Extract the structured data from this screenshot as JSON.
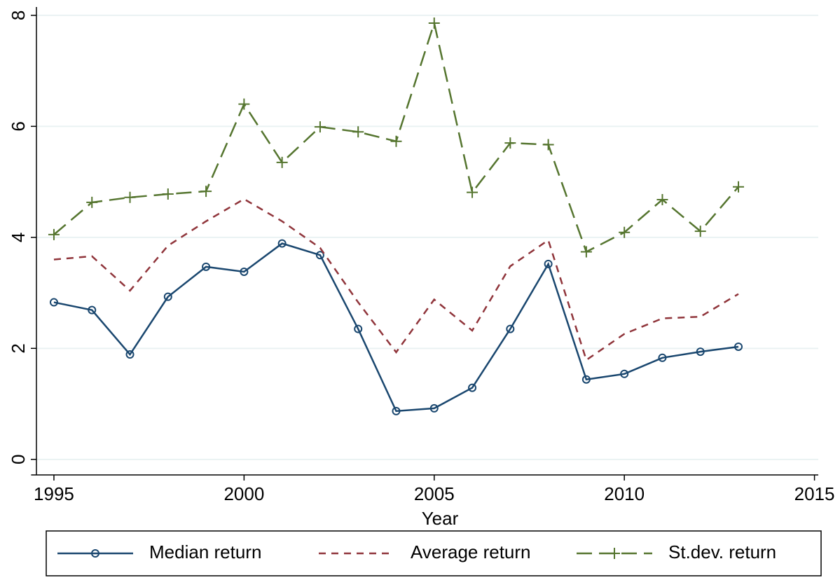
{
  "chart_data": {
    "type": "line",
    "x_label": "Year",
    "x": [
      1995,
      1996,
      1997,
      1998,
      1999,
      2000,
      2001,
      2002,
      2003,
      2004,
      2005,
      2006,
      2007,
      2008,
      2009,
      2010,
      2011,
      2012,
      2013
    ],
    "series": [
      {
        "name": "Median return",
        "color": "#1a476f",
        "marker": "circle",
        "dash": "solid",
        "values": [
          2.83,
          2.69,
          1.89,
          2.93,
          3.47,
          3.38,
          3.89,
          3.68,
          2.35,
          0.87,
          0.92,
          1.29,
          2.35,
          3.52,
          1.44,
          1.54,
          1.83,
          1.94,
          2.03
        ]
      },
      {
        "name": "Average return",
        "color": "#90353b",
        "marker": "none",
        "dash": "short",
        "values": [
          3.6,
          3.66,
          3.04,
          3.85,
          4.29,
          4.69,
          4.29,
          3.81,
          2.83,
          1.93,
          2.88,
          2.32,
          3.48,
          3.95,
          1.79,
          2.26,
          2.54,
          2.57,
          2.98
        ]
      },
      {
        "name": "St.dev. return",
        "color": "#55752f",
        "marker": "plus",
        "dash": "long",
        "values": [
          4.05,
          4.63,
          4.72,
          4.78,
          4.83,
          6.4,
          5.35,
          5.99,
          5.9,
          5.73,
          7.86,
          4.81,
          5.7,
          5.67,
          3.74,
          4.09,
          4.68,
          4.11,
          4.91
        ]
      }
    ],
    "xlim": [
      1994.4,
      2015.1
    ],
    "xticks": [
      1995,
      2000,
      2005,
      2010,
      2015
    ],
    "ylim": [
      -0.28,
      8.15
    ],
    "yticks": [
      0,
      2,
      4,
      6,
      8
    ],
    "grid": true,
    "legend": "bottom"
  }
}
